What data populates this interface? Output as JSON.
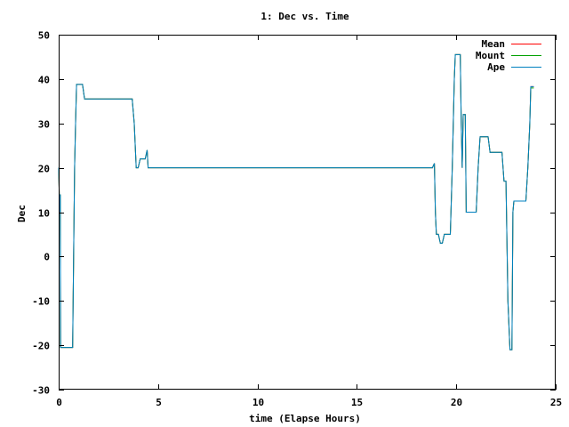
{
  "chart_data": {
    "type": "line",
    "title": "1: Dec vs. Time",
    "xlabel": "time (Elapse Hours)",
    "ylabel": "Dec",
    "xlim": [
      0,
      25
    ],
    "ylim": [
      -30,
      50
    ],
    "xticks": [
      0,
      5,
      10,
      15,
      20,
      25
    ],
    "yticks": [
      -30,
      -20,
      -10,
      0,
      10,
      20,
      30,
      40,
      50
    ],
    "grid": false,
    "legend_position": "top-right",
    "series": [
      {
        "name": "Mean",
        "color": "#ff0000",
        "points": [
          [
            0,
            20
          ],
          [
            0.05,
            10
          ],
          [
            0.08,
            14
          ],
          [
            0.1,
            -20.5
          ],
          [
            0.3,
            -20.5
          ],
          [
            0.7,
            -20.5
          ],
          [
            0.75,
            0
          ],
          [
            0.8,
            20
          ],
          [
            0.85,
            30
          ],
          [
            0.9,
            38.8
          ],
          [
            1.2,
            38.8
          ],
          [
            1.3,
            35.5
          ],
          [
            3.7,
            35.5
          ],
          [
            3.8,
            30
          ],
          [
            3.9,
            20
          ],
          [
            4.0,
            20
          ],
          [
            4.1,
            22
          ],
          [
            4.35,
            22
          ],
          [
            4.45,
            24
          ],
          [
            4.5,
            20
          ],
          [
            18.8,
            20
          ],
          [
            18.9,
            21
          ],
          [
            18.95,
            10
          ],
          [
            19.0,
            5
          ],
          [
            19.1,
            5
          ],
          [
            19.2,
            3
          ],
          [
            19.3,
            3
          ],
          [
            19.4,
            5
          ],
          [
            19.7,
            5
          ],
          [
            19.8,
            20
          ],
          [
            19.9,
            40
          ],
          [
            19.95,
            45.5
          ],
          [
            20.2,
            45.5
          ],
          [
            20.25,
            30
          ],
          [
            20.3,
            20
          ],
          [
            20.35,
            32
          ],
          [
            20.45,
            32
          ],
          [
            20.5,
            10
          ],
          [
            21.0,
            10
          ],
          [
            21.1,
            20
          ],
          [
            21.2,
            27
          ],
          [
            21.6,
            27
          ],
          [
            21.7,
            23.5
          ],
          [
            22.3,
            23.5
          ],
          [
            22.4,
            17
          ],
          [
            22.5,
            17
          ],
          [
            22.6,
            -10
          ],
          [
            22.7,
            -21
          ],
          [
            22.8,
            -21
          ],
          [
            22.85,
            10
          ],
          [
            22.9,
            12.5
          ],
          [
            23.5,
            12.5
          ],
          [
            23.6,
            20
          ],
          [
            23.7,
            30
          ],
          [
            23.75,
            38.3
          ],
          [
            23.9,
            38.3
          ]
        ]
      },
      {
        "name": "Mount",
        "color": "#00a000",
        "points": [
          [
            0,
            20
          ],
          [
            0.05,
            10
          ],
          [
            0.08,
            14
          ],
          [
            0.1,
            -20.5
          ],
          [
            0.3,
            -20.5
          ],
          [
            0.7,
            -20.5
          ],
          [
            0.75,
            0
          ],
          [
            0.8,
            20
          ],
          [
            0.85,
            30
          ],
          [
            0.9,
            38.8
          ],
          [
            1.2,
            38.8
          ],
          [
            1.3,
            35.5
          ],
          [
            3.7,
            35.5
          ],
          [
            3.8,
            30
          ],
          [
            3.9,
            20
          ],
          [
            4.0,
            20
          ],
          [
            4.1,
            22
          ],
          [
            4.35,
            22
          ],
          [
            4.45,
            24
          ],
          [
            4.5,
            20
          ],
          [
            18.8,
            20
          ],
          [
            18.9,
            21
          ],
          [
            18.95,
            10
          ],
          [
            19.0,
            5
          ],
          [
            19.1,
            5
          ],
          [
            19.2,
            3
          ],
          [
            19.3,
            3
          ],
          [
            19.4,
            5
          ],
          [
            19.7,
            5
          ],
          [
            19.8,
            20
          ],
          [
            19.9,
            40
          ],
          [
            19.95,
            45.5
          ],
          [
            20.2,
            45.5
          ],
          [
            20.25,
            30
          ],
          [
            20.3,
            20
          ],
          [
            20.35,
            32
          ],
          [
            20.45,
            32
          ],
          [
            20.5,
            10
          ],
          [
            21.0,
            10
          ],
          [
            21.1,
            20
          ],
          [
            21.2,
            27
          ],
          [
            21.6,
            27
          ],
          [
            21.7,
            23.5
          ],
          [
            22.3,
            23.5
          ],
          [
            22.4,
            17
          ],
          [
            22.5,
            17
          ],
          [
            22.6,
            -10
          ],
          [
            22.7,
            -21
          ],
          [
            22.8,
            -21
          ],
          [
            22.85,
            10
          ],
          [
            22.9,
            12.5
          ],
          [
            23.5,
            12.5
          ],
          [
            23.6,
            20
          ],
          [
            23.7,
            30
          ],
          [
            23.75,
            38
          ],
          [
            23.9,
            38
          ]
        ]
      },
      {
        "name": "Ape",
        "color": "#0080c0",
        "points": [
          [
            0,
            20
          ],
          [
            0.05,
            10
          ],
          [
            0.08,
            14
          ],
          [
            0.1,
            -20.5
          ],
          [
            0.3,
            -20.5
          ],
          [
            0.7,
            -20.5
          ],
          [
            0.75,
            0
          ],
          [
            0.8,
            20
          ],
          [
            0.85,
            30
          ],
          [
            0.9,
            38.8
          ],
          [
            1.2,
            38.8
          ],
          [
            1.3,
            35.5
          ],
          [
            3.7,
            35.5
          ],
          [
            3.8,
            30
          ],
          [
            3.9,
            20
          ],
          [
            4.0,
            20
          ],
          [
            4.1,
            22
          ],
          [
            4.35,
            22
          ],
          [
            4.45,
            24
          ],
          [
            4.5,
            20
          ],
          [
            18.8,
            20
          ],
          [
            18.9,
            21
          ],
          [
            18.95,
            10
          ],
          [
            19.0,
            5
          ],
          [
            19.1,
            5
          ],
          [
            19.2,
            3
          ],
          [
            19.3,
            3
          ],
          [
            19.4,
            5
          ],
          [
            19.7,
            5
          ],
          [
            19.8,
            20
          ],
          [
            19.9,
            40
          ],
          [
            19.95,
            45.5
          ],
          [
            20.2,
            45.5
          ],
          [
            20.25,
            30
          ],
          [
            20.3,
            20
          ],
          [
            20.35,
            32
          ],
          [
            20.45,
            32
          ],
          [
            20.5,
            10
          ],
          [
            21.0,
            10
          ],
          [
            21.1,
            20
          ],
          [
            21.2,
            27
          ],
          [
            21.6,
            27
          ],
          [
            21.7,
            23.5
          ],
          [
            22.3,
            23.5
          ],
          [
            22.4,
            17
          ],
          [
            22.5,
            17
          ],
          [
            22.6,
            -10
          ],
          [
            22.7,
            -21
          ],
          [
            22.8,
            -21
          ],
          [
            22.85,
            10
          ],
          [
            22.9,
            12.5
          ],
          [
            23.5,
            12.5
          ],
          [
            23.6,
            20
          ],
          [
            23.7,
            30
          ],
          [
            23.75,
            38.3
          ],
          [
            23.9,
            38.3
          ]
        ]
      }
    ]
  }
}
